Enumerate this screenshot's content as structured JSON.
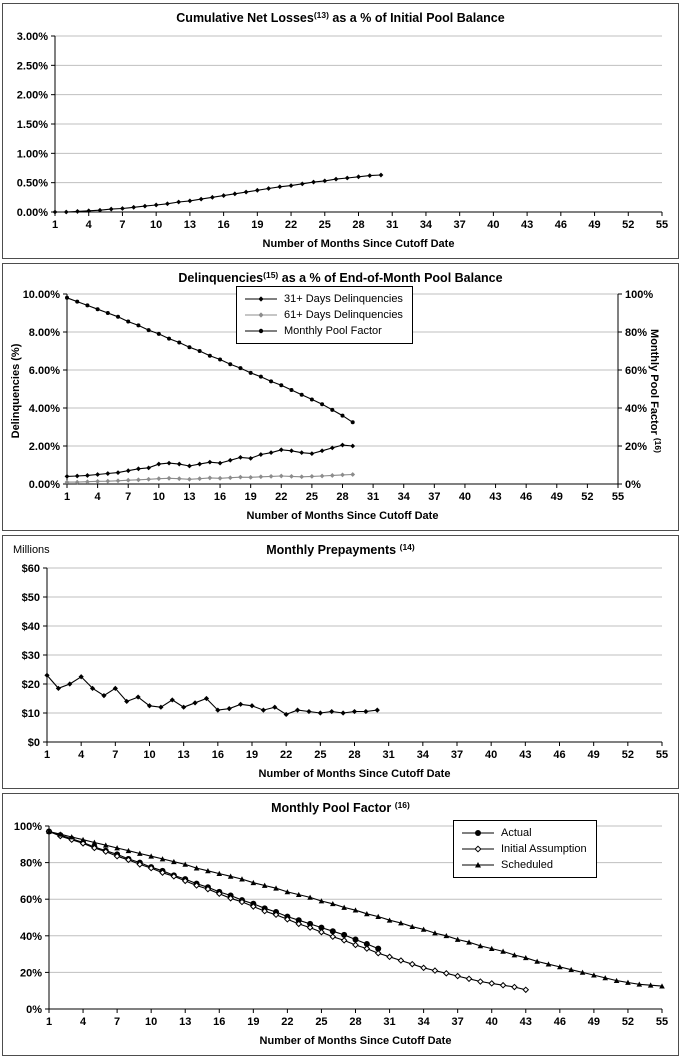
{
  "style": {
    "background": "#ffffff",
    "axis_color": "#000000",
    "grid_color": "#bfbfbf",
    "panel_border_color": "#4d4d4d",
    "gray_series_color": "#8c8c8c"
  },
  "chart_data": [
    {
      "type": "line",
      "title": "Cumulative Net Losses",
      "title_sup": "(13)",
      "title_rest": " as a % of Initial Pool Balance",
      "xlabel": "Number of Months Since Cutoff Date",
      "ylabel": "",
      "grid": "horizontal",
      "legend_position": "none",
      "xlim": [
        1,
        55
      ],
      "ylim": [
        0,
        3
      ],
      "xticks": {
        "values": [
          1,
          4,
          7,
          10,
          13,
          16,
          19,
          22,
          25,
          28,
          31,
          34,
          37,
          40,
          43,
          46,
          49,
          52,
          55
        ],
        "labels": [
          "1",
          "4",
          "7",
          "10",
          "13",
          "16",
          "19",
          "22",
          "25",
          "28",
          "31",
          "34",
          "37",
          "40",
          "43",
          "46",
          "49",
          "52",
          "55"
        ]
      },
      "yticks": {
        "values": [
          0,
          0.5,
          1,
          1.5,
          2,
          2.5,
          3
        ],
        "labels": [
          "0.00%",
          "0.50%",
          "1.00%",
          "1.50%",
          "2.00%",
          "2.50%",
          "3.00%"
        ]
      },
      "series": [
        {
          "name": "Cumulative Net Losses",
          "marker": "diamond",
          "color": "#000000",
          "x_start": 1,
          "y": [
            0.0,
            0.0,
            0.01,
            0.02,
            0.03,
            0.05,
            0.06,
            0.08,
            0.1,
            0.12,
            0.14,
            0.17,
            0.19,
            0.22,
            0.25,
            0.28,
            0.31,
            0.34,
            0.37,
            0.4,
            0.43,
            0.45,
            0.48,
            0.51,
            0.53,
            0.56,
            0.58,
            0.6,
            0.62,
            0.63
          ]
        }
      ]
    },
    {
      "type": "line",
      "title": "Delinquencies",
      "title_sup": "(15)",
      "title_rest": " as a % of End-of-Month Pool Balance",
      "xlabel": "Number of Months Since Cutoff Date",
      "ylabel": "Delinquencies (%)",
      "y2label": "Monthly Pool Factor ",
      "y2label_sup": "(16)",
      "grid": "horizontal",
      "legend_position": "top-center",
      "xlim": [
        1,
        55
      ],
      "ylim": [
        0,
        10
      ],
      "y2lim": [
        0,
        100
      ],
      "xticks": {
        "values": [
          1,
          4,
          7,
          10,
          13,
          16,
          19,
          22,
          25,
          28,
          31,
          34,
          37,
          40,
          43,
          46,
          49,
          52,
          55
        ],
        "labels": [
          "1",
          "4",
          "7",
          "10",
          "13",
          "16",
          "19",
          "22",
          "25",
          "28",
          "31",
          "34",
          "37",
          "40",
          "43",
          "46",
          "49",
          "52",
          "55"
        ]
      },
      "yticks": {
        "values": [
          0,
          2,
          4,
          6,
          8,
          10
        ],
        "labels": [
          "0.00%",
          "2.00%",
          "4.00%",
          "6.00%",
          "8.00%",
          "10.00%"
        ]
      },
      "y2ticks": {
        "values": [
          0,
          20,
          40,
          60,
          80,
          100
        ],
        "labels": [
          "0%",
          "20%",
          "40%",
          "60%",
          "80%",
          "100%"
        ]
      },
      "legend": {
        "items": [
          {
            "label": "31+ Days Delinquencies",
            "marker": "diamond",
            "color": "#000000",
            "marker_size": 2.6
          },
          {
            "label": "61+ Days Delinquencies",
            "marker": "diamond",
            "color": "#8c8c8c",
            "marker_size": 2.6
          },
          {
            "label": "Monthly Pool Factor",
            "marker": "circle",
            "color": "#000000",
            "marker_size": 2.2
          }
        ]
      },
      "series": [
        {
          "name": "31+ Days Delinquencies",
          "marker": "diamond",
          "color": "#000000",
          "yaxis": "left",
          "x_start": 1,
          "marker_size": 2.4,
          "y": [
            0.4,
            0.42,
            0.45,
            0.5,
            0.55,
            0.6,
            0.7,
            0.8,
            0.85,
            1.05,
            1.1,
            1.05,
            0.95,
            1.05,
            1.15,
            1.1,
            1.25,
            1.4,
            1.35,
            1.55,
            1.65,
            1.8,
            1.75,
            1.65,
            1.6,
            1.75,
            1.9,
            2.05,
            2.0
          ]
        },
        {
          "name": "61+ Days Delinquencies",
          "marker": "diamond",
          "color": "#8c8c8c",
          "yaxis": "left",
          "x_start": 1,
          "marker_size": 2.4,
          "y": [
            0.1,
            0.1,
            0.12,
            0.14,
            0.15,
            0.17,
            0.2,
            0.22,
            0.25,
            0.28,
            0.3,
            0.28,
            0.25,
            0.28,
            0.32,
            0.3,
            0.33,
            0.36,
            0.35,
            0.38,
            0.4,
            0.42,
            0.4,
            0.38,
            0.4,
            0.42,
            0.45,
            0.48,
            0.5
          ]
        },
        {
          "name": "Monthly Pool Factor",
          "marker": "circle",
          "color": "#000000",
          "yaxis": "right",
          "x_start": 1,
          "marker_size": 2.0,
          "y": [
            98,
            96,
            94,
            92,
            90,
            88,
            85.5,
            83.5,
            81,
            79,
            76.5,
            74.5,
            72,
            70,
            67.5,
            65.5,
            63,
            61,
            58.5,
            56.5,
            54,
            52,
            49.5,
            47,
            44.5,
            42,
            39,
            36,
            32.5
          ]
        }
      ]
    },
    {
      "type": "line",
      "title": "Monthly Prepayments ",
      "title_sup": "(14)",
      "title_rest": "",
      "units_label": "Millions",
      "xlabel": "Number of Months Since Cutoff Date",
      "ylabel": "",
      "grid": "horizontal",
      "legend_position": "none",
      "xlim": [
        1,
        55
      ],
      "ylim": [
        0,
        60
      ],
      "xticks": {
        "values": [
          1,
          4,
          7,
          10,
          13,
          16,
          19,
          22,
          25,
          28,
          31,
          34,
          37,
          40,
          43,
          46,
          49,
          52,
          55
        ],
        "labels": [
          "1",
          "4",
          "7",
          "10",
          "13",
          "16",
          "19",
          "22",
          "25",
          "28",
          "31",
          "34",
          "37",
          "40",
          "43",
          "46",
          "49",
          "52",
          "55"
        ]
      },
      "yticks": {
        "values": [
          0,
          10,
          20,
          30,
          40,
          50,
          60
        ],
        "labels": [
          "$0",
          "$10",
          "$20",
          "$30",
          "$40",
          "$50",
          "$60"
        ]
      },
      "series": [
        {
          "name": "Monthly Prepayments ($ millions)",
          "marker": "diamond",
          "color": "#000000",
          "x_start": 1,
          "marker_size": 2.6,
          "y": [
            23,
            18.5,
            20,
            22.5,
            18.5,
            16,
            18.5,
            14,
            15.5,
            12.5,
            12,
            14.5,
            12,
            13.5,
            15,
            11,
            11.5,
            13,
            12.5,
            11,
            12,
            9.5,
            11,
            10.5,
            10,
            10.5,
            10,
            10.5,
            10.5,
            11
          ]
        }
      ]
    },
    {
      "type": "line",
      "title": "Monthly Pool Factor ",
      "title_sup": "(16)",
      "title_rest": "",
      "xlabel": "Number of Months Since Cutoff Date",
      "ylabel": "",
      "grid": "horizontal",
      "legend_position": "top-right",
      "xlim": [
        1,
        55
      ],
      "ylim": [
        0,
        100
      ],
      "xticks": {
        "values": [
          1,
          4,
          7,
          10,
          13,
          16,
          19,
          22,
          25,
          28,
          31,
          34,
          37,
          40,
          43,
          46,
          49,
          52,
          55
        ],
        "labels": [
          "1",
          "4",
          "7",
          "10",
          "13",
          "16",
          "19",
          "22",
          "25",
          "28",
          "31",
          "34",
          "37",
          "40",
          "43",
          "46",
          "49",
          "52",
          "55"
        ]
      },
      "yticks": {
        "values": [
          0,
          20,
          40,
          60,
          80,
          100
        ],
        "labels": [
          "0%",
          "20%",
          "40%",
          "60%",
          "80%",
          "100%"
        ]
      },
      "legend": {
        "items": [
          {
            "label": "Actual",
            "marker": "circle",
            "color": "#000000",
            "marker_size": 3
          },
          {
            "label": "Initial Assumption",
            "marker": "open_diamond",
            "color": "#000000",
            "marker_size": 2.8
          },
          {
            "label": "Scheduled",
            "marker": "triangle",
            "color": "#000000",
            "marker_size": 3
          }
        ]
      },
      "series": [
        {
          "name": "Actual",
          "marker": "circle",
          "color": "#000000",
          "x_start": 1,
          "marker_size": 3,
          "y": [
            97,
            95,
            93,
            91,
            88.5,
            86.5,
            84.5,
            82,
            80,
            77.5,
            75.5,
            73,
            71,
            68.5,
            66.5,
            64,
            62,
            59.5,
            57.5,
            55,
            53,
            50.5,
            48.5,
            46.5,
            44.5,
            42.5,
            40.5,
            38,
            35.5,
            33
          ]
        },
        {
          "name": "Initial Assumption",
          "marker": "open_diamond",
          "color": "#000000",
          "x_start": 1,
          "marker_size": 2.6,
          "y": [
            97,
            94.5,
            92.5,
            90.5,
            88,
            86,
            83.5,
            81.5,
            79,
            77,
            74.5,
            72.5,
            70,
            67.5,
            65.5,
            63,
            60.5,
            58.5,
            56,
            53.5,
            51.5,
            49,
            46.5,
            44.5,
            42,
            39.5,
            37.5,
            35,
            33,
            30.5,
            28.5,
            26.5,
            24.5,
            22.5,
            21,
            19.5,
            18,
            16.5,
            15,
            14,
            13,
            12,
            10.5
          ]
        },
        {
          "name": "Scheduled",
          "marker": "triangle",
          "color": "#000000",
          "x_start": 1,
          "marker_size": 2.8,
          "y": [
            97,
            95.5,
            94,
            92.5,
            91,
            89.5,
            88,
            86.5,
            85,
            83.5,
            82,
            80.5,
            79,
            77,
            75.5,
            74,
            72.5,
            71,
            69,
            67.5,
            66,
            64,
            62.5,
            61,
            59,
            57.5,
            55.5,
            54,
            52,
            50.5,
            48.5,
            47,
            45,
            43.5,
            41.5,
            40,
            38,
            36.5,
            34.5,
            33,
            31.5,
            29.5,
            28,
            26,
            24.5,
            23,
            21.5,
            20,
            18.5,
            17,
            15.5,
            14.5,
            13.5,
            13,
            12.5
          ]
        }
      ]
    }
  ]
}
